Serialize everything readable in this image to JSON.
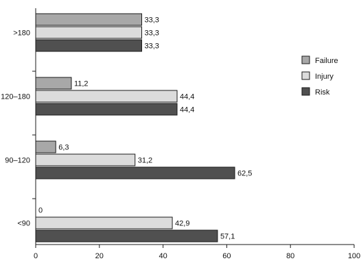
{
  "chart_data": {
    "type": "bar",
    "orientation": "horizontal",
    "categories": [
      ">180",
      "120–180",
      "90–120",
      "<90"
    ],
    "series": [
      {
        "name": "Failure",
        "values": [
          33.3,
          11.2,
          6.3,
          0
        ],
        "labels": [
          "33,3",
          "11,2",
          "6,3",
          "0"
        ],
        "color": "#a8a8a8"
      },
      {
        "name": "Injury",
        "values": [
          33.3,
          44.4,
          31.2,
          42.9
        ],
        "labels": [
          "33,3",
          "44,4",
          "31,2",
          "42,9"
        ],
        "color": "#dcdcdc"
      },
      {
        "name": "Risk",
        "values": [
          33.3,
          44.4,
          62.5,
          57.1
        ],
        "labels": [
          "33,3",
          "44,4",
          "62,5",
          "57,1"
        ],
        "color": "#505050"
      }
    ],
    "xlim": [
      0,
      100
    ],
    "xticks": [
      0,
      20,
      40,
      60,
      80,
      100
    ],
    "title": "",
    "xlabel": "",
    "ylabel": "",
    "grid": false,
    "legend_position": "right"
  }
}
